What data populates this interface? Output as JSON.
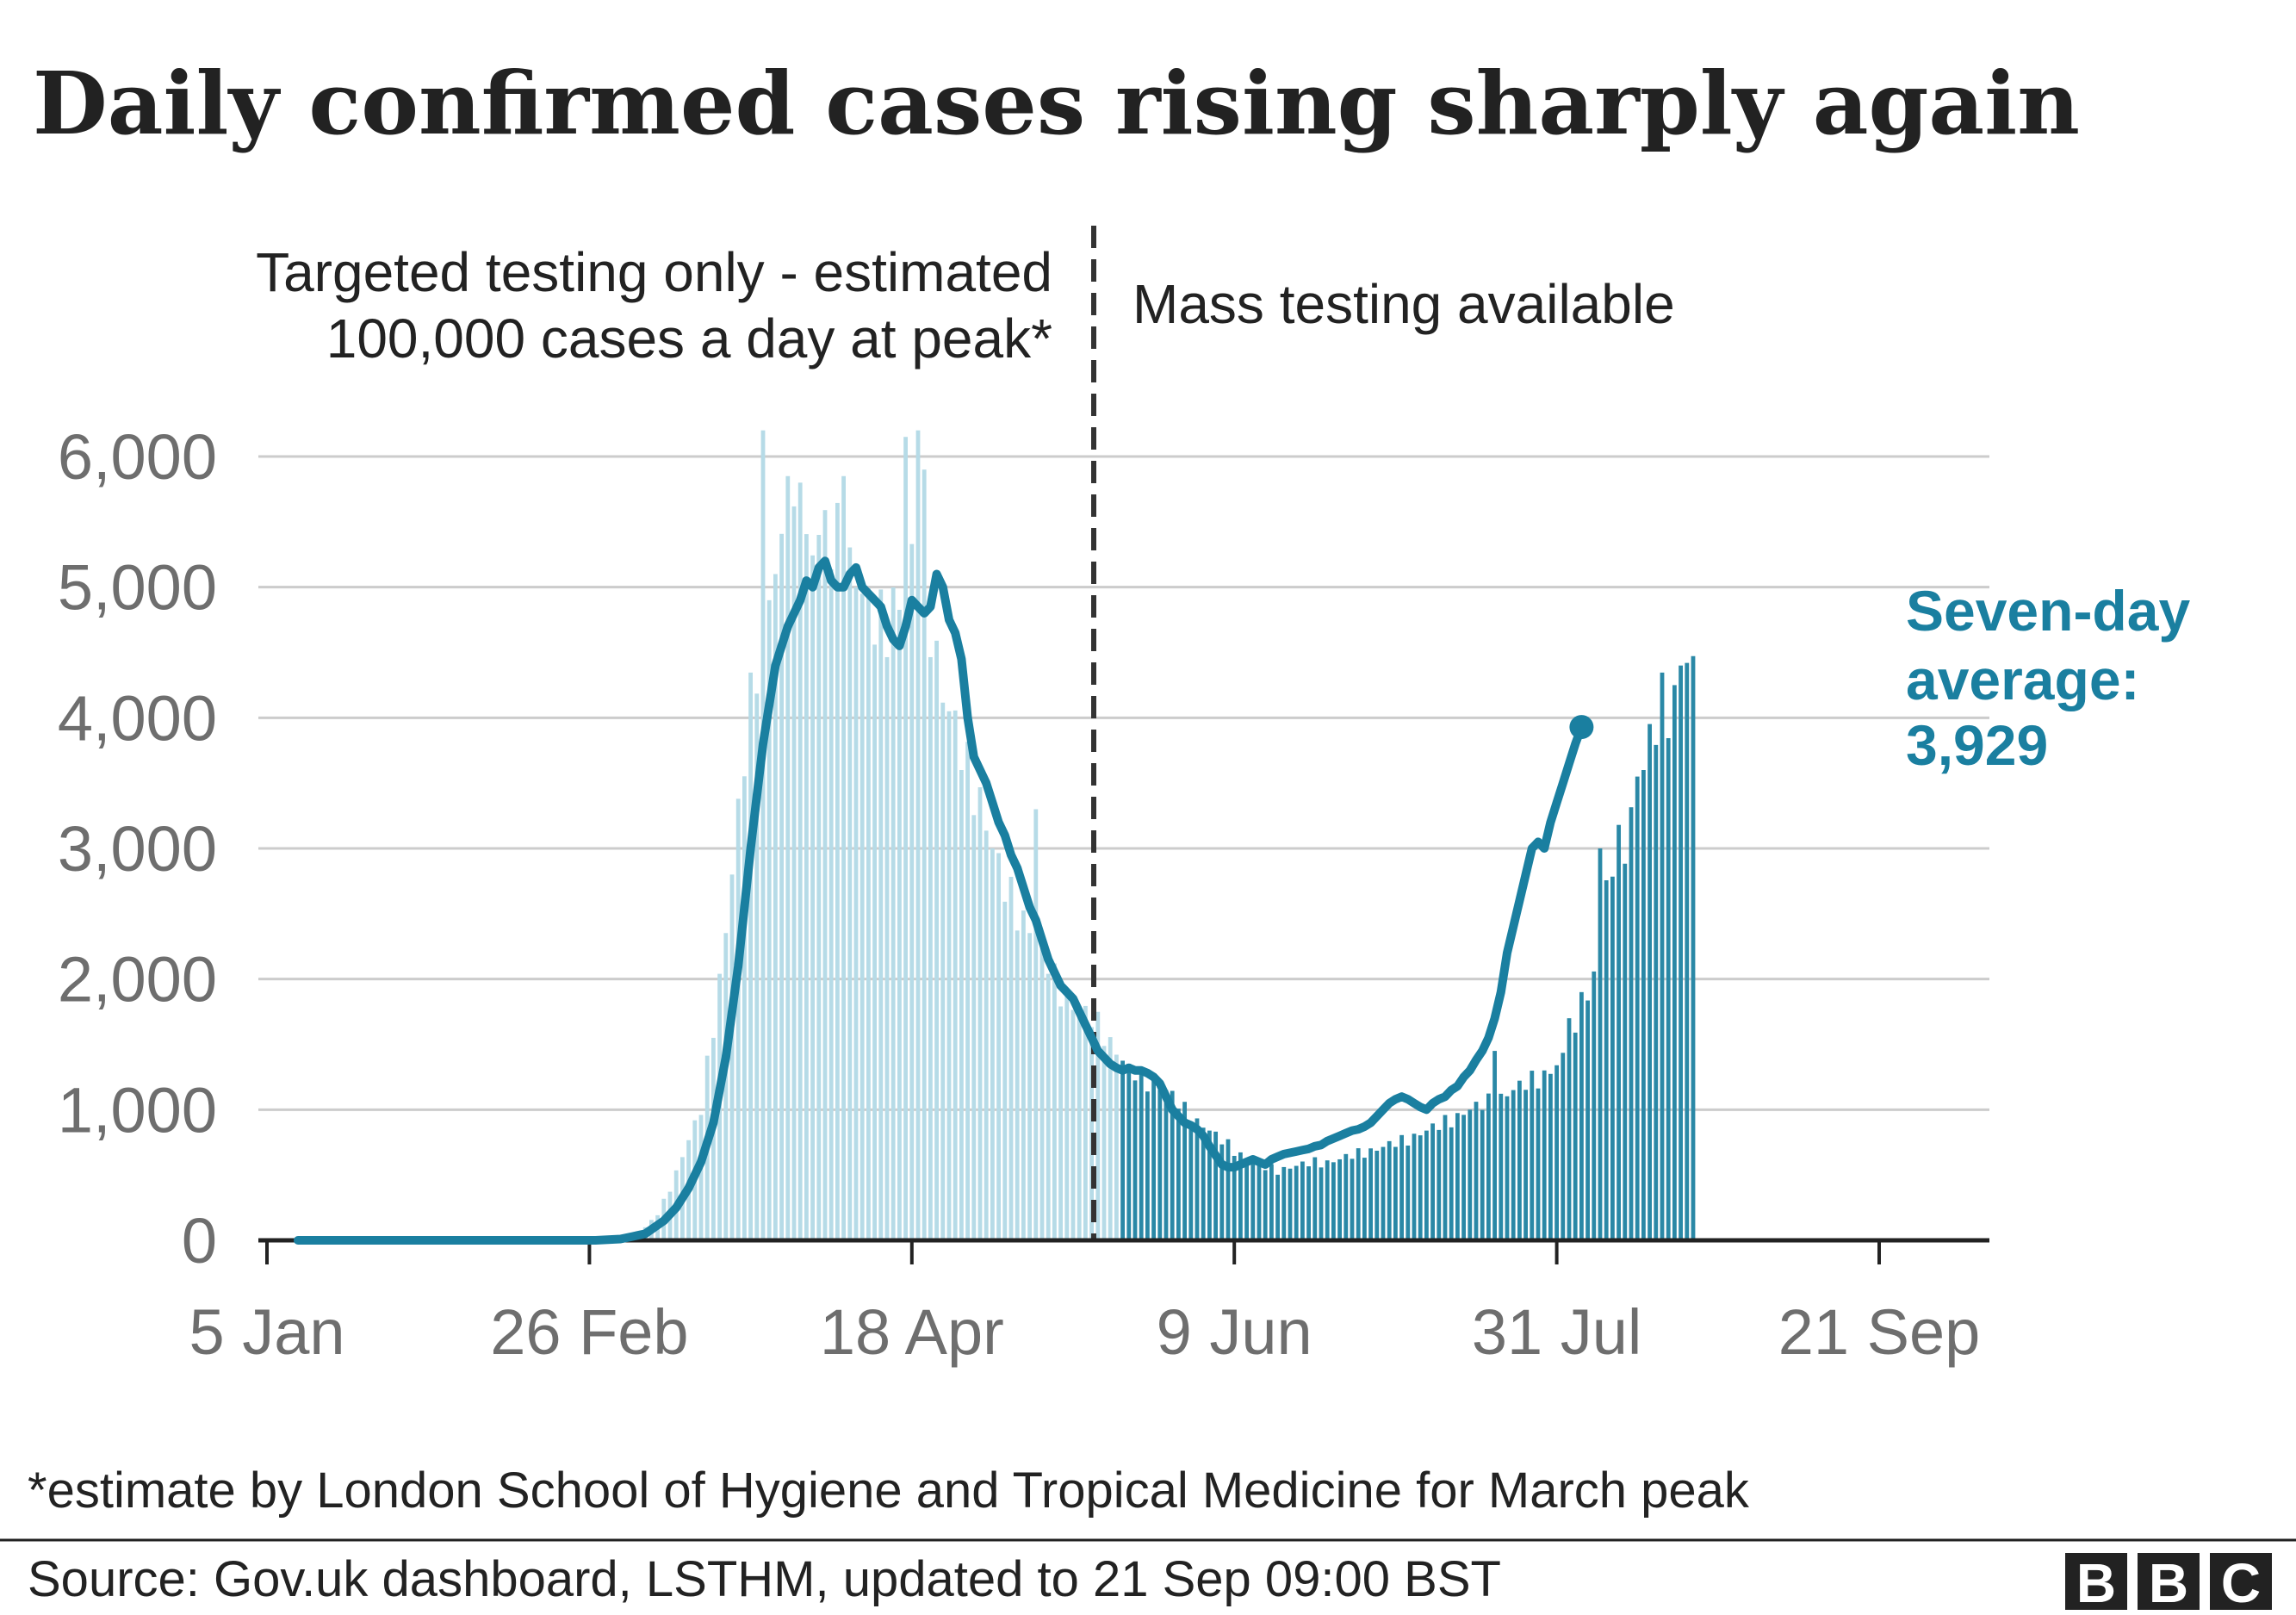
{
  "chart_data": {
    "type": "bar",
    "title": "Daily confirmed cases rising sharply again",
    "xlabel": "",
    "ylabel": "",
    "ylim": [
      0,
      6000
    ],
    "yticks": [
      0,
      1000,
      2000,
      3000,
      4000,
      5000,
      6000
    ],
    "ytick_labels": [
      "0",
      "1,000",
      "2,000",
      "3,000",
      "4,000",
      "5,000",
      "6,000"
    ],
    "xticks": [
      "5 Jan",
      "26 Feb",
      "18 Apr",
      "9 Jun",
      "31 Jul",
      "21 Sep"
    ],
    "grid": true,
    "period_annotations": {
      "before_line_1": "Targeted testing only - estimated",
      "before_line_2": "100,000 cases a day at peak*",
      "after": "Mass testing available"
    },
    "divider_date": "18 May",
    "series": [
      {
        "kind": "bar",
        "unit": "daily confirmed cases",
        "start": "10 Jan",
        "end": "21 Sep",
        "anchors": [
          [
            0,
            0
          ],
          [
            48,
            0
          ],
          [
            52,
            20
          ],
          [
            55,
            50
          ],
          [
            58,
            200
          ],
          [
            60,
            400
          ],
          [
            62,
            650
          ],
          [
            65,
            1000
          ],
          [
            68,
            2000
          ],
          [
            70,
            2800
          ],
          [
            72,
            3700
          ],
          [
            74,
            4500
          ],
          [
            76,
            5000
          ],
          [
            78,
            5200
          ],
          [
            80,
            5300
          ],
          [
            82,
            5300
          ],
          [
            84,
            5400
          ],
          [
            86,
            5350
          ],
          [
            88,
            5300
          ],
          [
            90,
            5100
          ],
          [
            92,
            4800
          ],
          [
            94,
            4700
          ],
          [
            96,
            4900
          ],
          [
            98,
            4950
          ],
          [
            100,
            5300
          ],
          [
            102,
            4800
          ],
          [
            104,
            4200
          ],
          [
            106,
            3900
          ],
          [
            108,
            3600
          ],
          [
            110,
            3400
          ],
          [
            112,
            3000
          ],
          [
            114,
            2700
          ],
          [
            116,
            2550
          ],
          [
            118,
            2400
          ],
          [
            120,
            2250
          ],
          [
            122,
            2000
          ],
          [
            124,
            1850
          ],
          [
            126,
            1750
          ],
          [
            128,
            1700
          ],
          [
            130,
            1600
          ],
          [
            132,
            1450
          ],
          [
            134,
            1300
          ],
          [
            136,
            1250
          ],
          [
            138,
            1200
          ],
          [
            140,
            1150
          ],
          [
            142,
            1050
          ],
          [
            144,
            950
          ],
          [
            146,
            880
          ],
          [
            148,
            800
          ],
          [
            150,
            730
          ],
          [
            152,
            660
          ],
          [
            154,
            600
          ],
          [
            156,
            560
          ],
          [
            158,
            540
          ],
          [
            160,
            560
          ],
          [
            162,
            580
          ],
          [
            164,
            600
          ],
          [
            166,
            600
          ],
          [
            168,
            620
          ],
          [
            170,
            650
          ],
          [
            172,
            680
          ],
          [
            174,
            700
          ],
          [
            176,
            730
          ],
          [
            178,
            760
          ],
          [
            180,
            800
          ],
          [
            182,
            840
          ],
          [
            184,
            880
          ],
          [
            186,
            930
          ],
          [
            188,
            980
          ],
          [
            190,
            1020
          ],
          [
            192,
            1060
          ],
          [
            194,
            1100
          ],
          [
            196,
            1150
          ],
          [
            198,
            1200
          ],
          [
            200,
            1250
          ],
          [
            202,
            1300
          ],
          [
            204,
            1380
          ],
          [
            206,
            1500
          ],
          [
            208,
            1800
          ],
          [
            210,
            2400
          ],
          [
            212,
            2900
          ],
          [
            214,
            3100
          ],
          [
            216,
            3400
          ],
          [
            218,
            3800
          ],
          [
            220,
            4100
          ],
          [
            223,
            4200
          ],
          [
            225,
            4300
          ]
        ],
        "spikes": {
          "75": 6200,
          "79": 5850,
          "81": 5800,
          "88": 5850,
          "98": 6150,
          "100": 6200,
          "101": 5900,
          "119": 3300,
          "193": 1450,
          "205": 1700,
          "207": 1900,
          "210": 3000,
          "216": 3550,
          "223": 4400,
          "224": 4420
        }
      },
      {
        "kind": "line",
        "name": "Seven-day average",
        "start": "10 Jan",
        "end": "21 Sep",
        "anchors": [
          [
            0,
            0
          ],
          [
            48,
            0
          ],
          [
            52,
            10
          ],
          [
            56,
            50
          ],
          [
            59,
            150
          ],
          [
            61,
            250
          ],
          [
            63,
            400
          ],
          [
            65,
            600
          ],
          [
            67,
            900
          ],
          [
            69,
            1400
          ],
          [
            71,
            2100
          ],
          [
            73,
            3000
          ],
          [
            75,
            3800
          ],
          [
            77,
            4400
          ],
          [
            79,
            4700
          ],
          [
            81,
            4900
          ],
          [
            82,
            5050
          ],
          [
            83,
            5000
          ],
          [
            84,
            5150
          ],
          [
            85,
            5200
          ],
          [
            86,
            5050
          ],
          [
            87,
            5000
          ],
          [
            88,
            5000
          ],
          [
            89,
            5100
          ],
          [
            90,
            5150
          ],
          [
            91,
            5000
          ],
          [
            92,
            4950
          ],
          [
            93,
            4900
          ],
          [
            94,
            4850
          ],
          [
            95,
            4700
          ],
          [
            96,
            4600
          ],
          [
            97,
            4550
          ],
          [
            98,
            4700
          ],
          [
            99,
            4900
          ],
          [
            100,
            4850
          ],
          [
            101,
            4800
          ],
          [
            102,
            4850
          ],
          [
            103,
            5100
          ],
          [
            104,
            5000
          ],
          [
            105,
            4750
          ],
          [
            106,
            4650
          ],
          [
            107,
            4450
          ],
          [
            108,
            4000
          ],
          [
            109,
            3700
          ],
          [
            110,
            3600
          ],
          [
            111,
            3500
          ],
          [
            112,
            3350
          ],
          [
            113,
            3200
          ],
          [
            114,
            3100
          ],
          [
            115,
            2950
          ],
          [
            116,
            2850
          ],
          [
            117,
            2700
          ],
          [
            118,
            2550
          ],
          [
            119,
            2450
          ],
          [
            120,
            2300
          ],
          [
            121,
            2150
          ],
          [
            122,
            2050
          ],
          [
            123,
            1950
          ],
          [
            124,
            1900
          ],
          [
            125,
            1850
          ],
          [
            126,
            1750
          ],
          [
            127,
            1650
          ],
          [
            128,
            1550
          ],
          [
            129,
            1450
          ],
          [
            130,
            1400
          ],
          [
            131,
            1350
          ],
          [
            132,
            1320
          ],
          [
            133,
            1300
          ],
          [
            134,
            1320
          ],
          [
            135,
            1300
          ],
          [
            136,
            1300
          ],
          [
            137,
            1280
          ],
          [
            138,
            1250
          ],
          [
            139,
            1200
          ],
          [
            140,
            1100
          ],
          [
            141,
            1000
          ],
          [
            142,
            950
          ],
          [
            143,
            900
          ],
          [
            144,
            880
          ],
          [
            145,
            850
          ],
          [
            146,
            800
          ],
          [
            147,
            720
          ],
          [
            148,
            650
          ],
          [
            149,
            580
          ],
          [
            150,
            560
          ],
          [
            151,
            560
          ],
          [
            152,
            580
          ],
          [
            153,
            600
          ],
          [
            154,
            620
          ],
          [
            155,
            600
          ],
          [
            156,
            580
          ],
          [
            157,
            620
          ],
          [
            158,
            640
          ],
          [
            159,
            660
          ],
          [
            160,
            670
          ],
          [
            161,
            680
          ],
          [
            162,
            690
          ],
          [
            163,
            700
          ],
          [
            164,
            720
          ],
          [
            165,
            730
          ],
          [
            166,
            760
          ],
          [
            167,
            780
          ],
          [
            168,
            800
          ],
          [
            169,
            820
          ],
          [
            170,
            840
          ],
          [
            171,
            850
          ],
          [
            172,
            870
          ],
          [
            173,
            900
          ],
          [
            174,
            950
          ],
          [
            175,
            1000
          ],
          [
            176,
            1050
          ],
          [
            177,
            1080
          ],
          [
            178,
            1100
          ],
          [
            179,
            1080
          ],
          [
            180,
            1050
          ],
          [
            181,
            1020
          ],
          [
            182,
            1000
          ],
          [
            183,
            1050
          ],
          [
            184,
            1080
          ],
          [
            185,
            1100
          ],
          [
            186,
            1150
          ],
          [
            187,
            1180
          ],
          [
            188,
            1250
          ],
          [
            189,
            1300
          ],
          [
            190,
            1380
          ],
          [
            191,
            1450
          ],
          [
            192,
            1550
          ],
          [
            193,
            1700
          ],
          [
            194,
            1900
          ],
          [
            195,
            2200
          ],
          [
            196,
            2400
          ],
          [
            197,
            2600
          ],
          [
            198,
            2800
          ],
          [
            199,
            3000
          ],
          [
            200,
            3050
          ],
          [
            201,
            3000
          ],
          [
            202,
            3200
          ],
          [
            203,
            3350
          ],
          [
            204,
            3500
          ],
          [
            205,
            3650
          ],
          [
            206,
            3800
          ],
          [
            207,
            3929
          ]
        ],
        "final_value": 3929
      }
    ],
    "highlight_label_line_1": "Seven-day",
    "highlight_label_line_2": "average:",
    "highlight_label_value": "3,929",
    "colors": {
      "bars_before": "#b6dbe7",
      "bars_after": "#2a88a6",
      "line": "#1a7fa0",
      "grid": "#cccccc",
      "axis": "#222222",
      "divider": "#333333"
    }
  },
  "footnote": "*estimate by London School of Hygiene and Tropical Medicine for March peak",
  "source": "Source: Gov.uk dashboard, LSTHM, updated to 21 Sep 09:00 BST",
  "logo": {
    "letters": [
      "B",
      "B",
      "C"
    ]
  }
}
